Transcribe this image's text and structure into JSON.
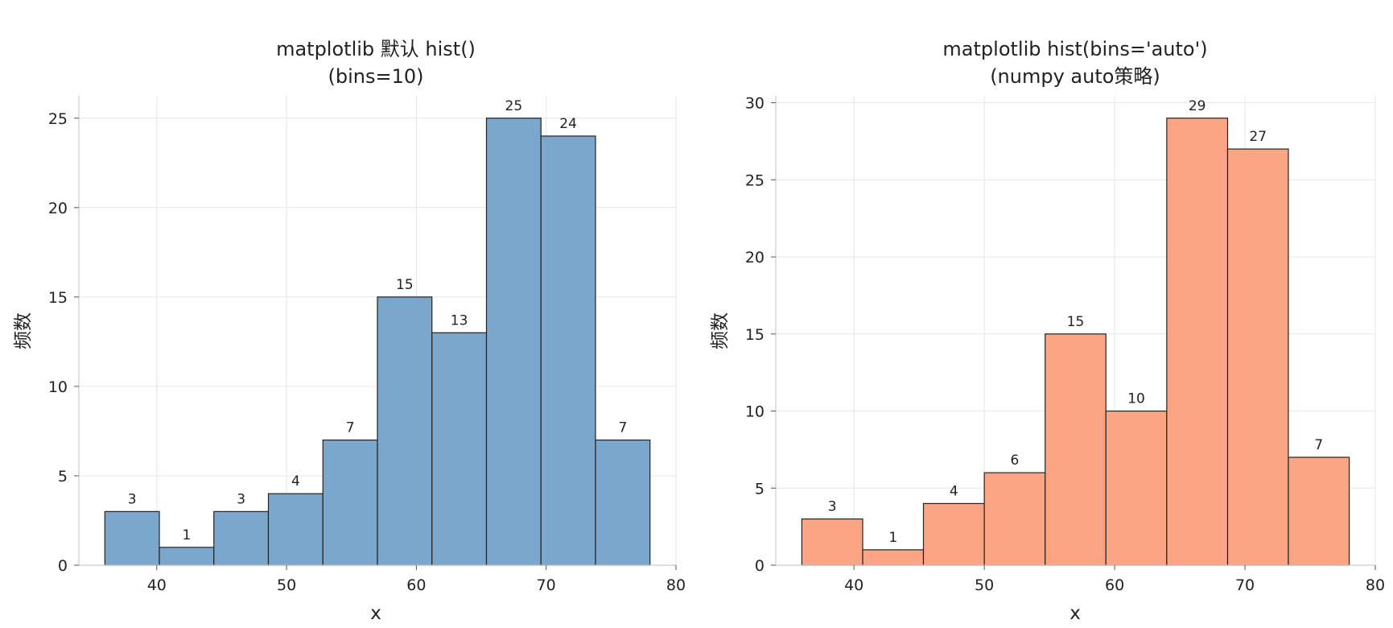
{
  "chart_data": [
    {
      "type": "bar",
      "title_line1": "matplotlib 默认 hist()",
      "title_line2": "(bins=10)",
      "xlabel": "x",
      "ylabel": "频数",
      "xlim": [
        34,
        80
      ],
      "ylim": [
        0,
        26.25
      ],
      "xticks": [
        40,
        50,
        60,
        70,
        80
      ],
      "yticks": [
        0,
        5,
        10,
        15,
        20,
        25
      ],
      "grid": true,
      "color": "#7ba7cc",
      "edgecolor": "#222222",
      "bin_edges": [
        36.0,
        40.2,
        44.4,
        48.6,
        52.8,
        57.0,
        61.2,
        65.4,
        69.6,
        73.8,
        78.0
      ],
      "values": [
        3,
        1,
        3,
        4,
        7,
        15,
        13,
        25,
        24,
        7
      ]
    },
    {
      "type": "bar",
      "title_line1": "matplotlib hist(bins='auto')",
      "title_line2": "(numpy auto策略)",
      "xlabel": "x",
      "ylabel": "频数",
      "xlim": [
        34,
        80
      ],
      "ylim": [
        0,
        30.45
      ],
      "xticks": [
        40,
        50,
        60,
        70,
        80
      ],
      "yticks": [
        0,
        5,
        10,
        15,
        20,
        25,
        30
      ],
      "grid": true,
      "color": "#fca584",
      "edgecolor": "#222222",
      "bin_edges": [
        36.0,
        40.67,
        45.33,
        50.0,
        54.67,
        59.33,
        64.0,
        68.67,
        73.33,
        78.0
      ],
      "values": [
        3,
        1,
        4,
        6,
        15,
        10,
        29,
        27,
        7
      ]
    }
  ]
}
